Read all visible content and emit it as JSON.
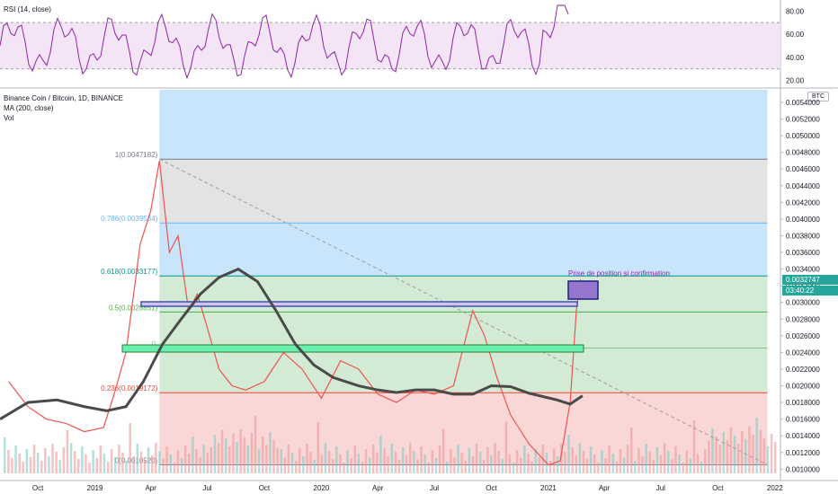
{
  "rsi_label": "RSI (14, close)",
  "main_title": "Binance Coin / Bitcoin, 1D, BINANCE",
  "ma_label": "MA (200, close)",
  "vol_label": "Vol",
  "currency_badge": "BTC",
  "last_price": "0.0032747",
  "countdown": "03:40:22",
  "annotation": "Prise de position si confirmation",
  "colors": {
    "ma": "#4a4a4a",
    "rsi_line": "#8e24aa",
    "rsi_fill": "#f3e5f5",
    "fib_blue": "#bbdefb",
    "fib_grey": "#e0e0e0",
    "fib_green": "#c8e6c9",
    "fib_red": "#f8cdcd",
    "candle_up": "#26a69a",
    "candle_down": "#ef5350",
    "last_price_tag": "#26a69a",
    "annotation_box": "#9575cd"
  },
  "chart_data": {
    "type": "line",
    "price_axis": {
      "ylim": [
        0.00095,
        0.00555
      ],
      "ticks": [
        "0.0054000",
        "0.0052000",
        "0.0050000",
        "0.0048000",
        "0.0046000",
        "0.0044000",
        "0.0042000",
        "0.0040000",
        "0.0038000",
        "0.0036000",
        "0.0034000",
        "0.0032000",
        "0.0030000",
        "0.0028000",
        "0.0026000",
        "0.0024000",
        "0.0022000",
        "0.0020000",
        "0.0018000",
        "0.0016000",
        "0.0014000",
        "0.0012000",
        "0.0010000"
      ]
    },
    "time_axis": {
      "ticks": [
        "Oct",
        "2019",
        "Apr",
        "Jul",
        "Oct",
        "2020",
        "Apr",
        "Jul",
        "Oct",
        "2021",
        "Apr",
        "Jul",
        "Oct",
        "2022"
      ]
    },
    "rsi_axis": {
      "ylim": [
        15,
        88
      ],
      "ticks": [
        "80.00",
        "60.00",
        "40.00",
        "20.00"
      ],
      "bands": [
        30,
        70
      ]
    },
    "fibonacci": [
      {
        "label": "1(0.0047182)",
        "value": 0.0047182,
        "color": "#787b86"
      },
      {
        "label": "0.786(0.0039534)",
        "value": 0.0039534,
        "color": "#64b5f6"
      },
      {
        "label": "0.618(0.0033177)",
        "value": 0.0033177,
        "color": "#009688"
      },
      {
        "label": "0.5(0.0028851)",
        "value": 0.0028851,
        "color": "#4caf50"
      },
      {
        "label": "0.",
        "value": 0.0024525,
        "color": "#81c784"
      },
      {
        "label": "0.236(0.0019172)",
        "value": 0.0019172,
        "color": "#f44336"
      },
      {
        "label": "0(0.0010520)",
        "value": 0.001052,
        "color": "#787b86"
      }
    ],
    "series": [
      {
        "name": "Binance Coin / Bitcoin",
        "x": [
          "2018-08-15",
          "2018-09-15",
          "2018-10-15",
          "2018-11-15",
          "2018-12-15",
          "2019-01-15",
          "2019-02-01",
          "2019-02-20",
          "2019-03-15",
          "2019-04-01",
          "2019-04-15",
          "2019-05-01",
          "2019-05-15",
          "2019-06-01",
          "2019-06-15",
          "2019-07-01",
          "2019-07-20",
          "2019-08-10",
          "2019-09-01",
          "2019-10-01",
          "2019-11-01",
          "2019-12-01",
          "2020-01-01",
          "2020-02-01",
          "2020-03-01",
          "2020-04-01",
          "2020-05-01",
          "2020-06-01",
          "2020-07-01",
          "2020-08-01",
          "2020-09-01",
          "2020-09-20",
          "2020-10-10",
          "2020-11-01",
          "2020-12-01",
          "2021-01-01",
          "2021-01-20",
          "2021-02-05",
          "2021-02-15",
          "2021-02-22"
        ],
        "values": [
          0.00205,
          0.00175,
          0.0016,
          0.00155,
          0.00145,
          0.0015,
          0.0019,
          0.0024,
          0.0037,
          0.0041,
          0.0047,
          0.0036,
          0.0038,
          0.0029,
          0.0031,
          0.0027,
          0.0022,
          0.002,
          0.00195,
          0.00205,
          0.0024,
          0.0022,
          0.00185,
          0.0023,
          0.0022,
          0.0019,
          0.0018,
          0.00195,
          0.0019,
          0.002,
          0.0029,
          0.0026,
          0.0021,
          0.00165,
          0.0013,
          0.00105,
          0.0011,
          0.0018,
          0.0029,
          0.0032747
        ]
      },
      {
        "name": "MA (200, close)",
        "x": [
          "2018-08-01",
          "2018-09-15",
          "2018-11-01",
          "2018-12-15",
          "2019-01-20",
          "2019-02-20",
          "2019-03-20",
          "2019-04-20",
          "2019-05-20",
          "2019-06-20",
          "2019-07-20",
          "2019-08-20",
          "2019-09-20",
          "2019-10-20",
          "2019-11-20",
          "2019-12-20",
          "2020-01-20",
          "2020-03-01",
          "2020-04-01",
          "2020-05-01",
          "2020-06-01",
          "2020-07-01",
          "2020-08-01",
          "2020-09-01",
          "2020-10-01",
          "2020-11-01",
          "2020-12-01",
          "2021-01-15",
          "2021-02-05",
          "2021-02-25"
        ],
        "values": [
          0.0016,
          0.0018,
          0.00183,
          0.00175,
          0.0017,
          0.00175,
          0.00205,
          0.0025,
          0.0028,
          0.0031,
          0.0033,
          0.0034,
          0.00325,
          0.0029,
          0.0025,
          0.00225,
          0.0021,
          0.002,
          0.00195,
          0.00192,
          0.00195,
          0.00195,
          0.0019,
          0.0019,
          0.002,
          0.00199,
          0.00191,
          0.00183,
          0.00178,
          0.00188
        ]
      }
    ]
  }
}
